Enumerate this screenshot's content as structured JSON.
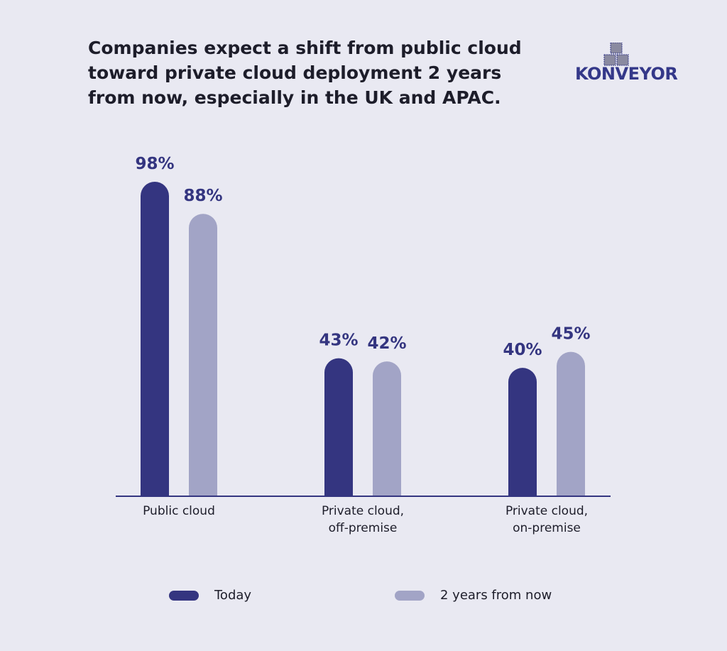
{
  "title_lines": [
    "Companies expect a shift from public cloud",
    "toward private cloud deployment 2 years",
    "from now, especially in the UK and APAC."
  ],
  "logo": {
    "text": "KONVEYOR"
  },
  "colors": {
    "today": "#343580",
    "future": "#a2a4c6",
    "axis": "#343580",
    "background": "#e9e9f2"
  },
  "chart_data": {
    "type": "bar",
    "categories": [
      [
        "Public cloud"
      ],
      [
        "Private cloud,",
        "off-premise"
      ],
      [
        "Private cloud,",
        "on-premise"
      ]
    ],
    "series": [
      {
        "name": "Today",
        "values": [
          98,
          43,
          40
        ],
        "labels": [
          "98%",
          "43%",
          "40%"
        ]
      },
      {
        "name": "2 years from now",
        "values": [
          88,
          42,
          45
        ],
        "labels": [
          "88%",
          "42%",
          "45%"
        ]
      }
    ],
    "ylim": [
      0,
      100
    ],
    "grid": false,
    "legend_position": "bottom"
  }
}
